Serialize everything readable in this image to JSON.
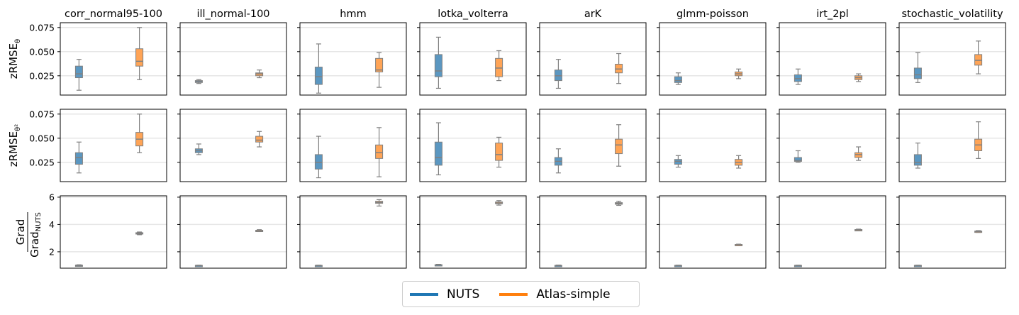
{
  "chart_data": {
    "type": "box",
    "columns": [
      "corr_normal95-100",
      "ill_normal-100",
      "hmm",
      "lotka_volterra",
      "arK",
      "glmm-poisson",
      "irt_2pl",
      "stochastic_volatility"
    ],
    "series": [
      {
        "name": "NUTS",
        "color": "#1f77b4"
      },
      {
        "name": "Atlas-simple",
        "color": "#ff7f0e"
      }
    ],
    "rows": [
      {
        "ylabel_main": "zRMSE",
        "ylabel_sub": "θ",
        "ylim": [
          0.005,
          0.08
        ],
        "yticks": [
          0.025,
          0.05,
          0.075
        ],
        "ytick_labels": [
          "0.025",
          "0.050",
          "0.075"
        ],
        "boxes": [
          [
            {
              "wl": 0.01,
              "q1": 0.023,
              "med": 0.027,
              "q3": 0.035,
              "wh": 0.042
            },
            {
              "wl": 0.021,
              "q1": 0.035,
              "med": 0.04,
              "q3": 0.053,
              "wh": 0.075
            }
          ],
          [
            {
              "wl": 0.017,
              "q1": 0.018,
              "med": 0.019,
              "q3": 0.02,
              "wh": 0.021
            },
            {
              "wl": 0.023,
              "q1": 0.025,
              "med": 0.027,
              "q3": 0.028,
              "wh": 0.031
            }
          ],
          [
            {
              "wl": 0.007,
              "q1": 0.016,
              "med": 0.024,
              "q3": 0.034,
              "wh": 0.058
            },
            {
              "wl": 0.013,
              "q1": 0.029,
              "med": 0.031,
              "q3": 0.043,
              "wh": 0.049
            }
          ],
          [
            {
              "wl": 0.012,
              "q1": 0.024,
              "med": 0.03,
              "q3": 0.047,
              "wh": 0.065
            },
            {
              "wl": 0.02,
              "q1": 0.024,
              "med": 0.033,
              "q3": 0.043,
              "wh": 0.051
            }
          ],
          [
            {
              "wl": 0.012,
              "q1": 0.02,
              "med": 0.025,
              "q3": 0.031,
              "wh": 0.042
            },
            {
              "wl": 0.017,
              "q1": 0.028,
              "med": 0.032,
              "q3": 0.037,
              "wh": 0.048
            }
          ],
          [
            {
              "wl": 0.016,
              "q1": 0.018,
              "med": 0.02,
              "q3": 0.024,
              "wh": 0.028
            },
            {
              "wl": 0.022,
              "q1": 0.025,
              "med": 0.027,
              "q3": 0.029,
              "wh": 0.032
            }
          ],
          [
            {
              "wl": 0.016,
              "q1": 0.019,
              "med": 0.022,
              "q3": 0.026,
              "wh": 0.032
            },
            {
              "wl": 0.019,
              "q1": 0.021,
              "med": 0.023,
              "q3": 0.025,
              "wh": 0.027
            }
          ],
          [
            {
              "wl": 0.018,
              "q1": 0.022,
              "med": 0.026,
              "q3": 0.033,
              "wh": 0.049
            },
            {
              "wl": 0.027,
              "q1": 0.036,
              "med": 0.041,
              "q3": 0.047,
              "wh": 0.061
            }
          ]
        ]
      },
      {
        "ylabel_main": "zRMSE",
        "ylabel_sub": "θ²",
        "ylim": [
          0.005,
          0.08
        ],
        "yticks": [
          0.025,
          0.05,
          0.075
        ],
        "ytick_labels": [
          "0.025",
          "0.050",
          "0.075"
        ],
        "boxes": [
          [
            {
              "wl": 0.014,
              "q1": 0.023,
              "med": 0.03,
              "q3": 0.035,
              "wh": 0.046
            },
            {
              "wl": 0.035,
              "q1": 0.042,
              "med": 0.049,
              "q3": 0.056,
              "wh": 0.075
            }
          ],
          [
            {
              "wl": 0.033,
              "q1": 0.035,
              "med": 0.037,
              "q3": 0.039,
              "wh": 0.044
            },
            {
              "wl": 0.041,
              "q1": 0.046,
              "med": 0.048,
              "q3": 0.052,
              "wh": 0.057
            }
          ],
          [
            {
              "wl": 0.009,
              "q1": 0.018,
              "med": 0.025,
              "q3": 0.033,
              "wh": 0.052
            },
            {
              "wl": 0.01,
              "q1": 0.029,
              "med": 0.035,
              "q3": 0.043,
              "wh": 0.061
            }
          ],
          [
            {
              "wl": 0.012,
              "q1": 0.022,
              "med": 0.03,
              "q3": 0.046,
              "wh": 0.066
            },
            {
              "wl": 0.02,
              "q1": 0.027,
              "med": 0.033,
              "q3": 0.045,
              "wh": 0.051
            }
          ],
          [
            {
              "wl": 0.014,
              "q1": 0.022,
              "med": 0.026,
              "q3": 0.03,
              "wh": 0.039
            },
            {
              "wl": 0.021,
              "q1": 0.034,
              "med": 0.043,
              "q3": 0.049,
              "wh": 0.064
            }
          ],
          [
            {
              "wl": 0.02,
              "q1": 0.023,
              "med": 0.026,
              "q3": 0.028,
              "wh": 0.032
            },
            {
              "wl": 0.019,
              "q1": 0.022,
              "med": 0.025,
              "q3": 0.028,
              "wh": 0.032
            }
          ],
          [
            {
              "wl": 0.025,
              "q1": 0.026,
              "med": 0.027,
              "q3": 0.03,
              "wh": 0.037
            },
            {
              "wl": 0.027,
              "q1": 0.03,
              "med": 0.033,
              "q3": 0.035,
              "wh": 0.041
            }
          ],
          [
            {
              "wl": 0.019,
              "q1": 0.022,
              "med": 0.025,
              "q3": 0.033,
              "wh": 0.045
            },
            {
              "wl": 0.029,
              "q1": 0.037,
              "med": 0.043,
              "q3": 0.049,
              "wh": 0.067
            }
          ]
        ]
      },
      {
        "ylabel_main": "Grad",
        "ylabel_sub": "Grad",
        "ylabel_subsub": "NUTS",
        "ylim": [
          0.8,
          6.1
        ],
        "yticks": [
          2,
          4,
          6
        ],
        "ytick_labels": [
          "2",
          "4",
          "6"
        ],
        "boxes": [
          [
            {
              "wl": 0.95,
              "q1": 0.97,
              "med": 1.0,
              "q3": 1.03,
              "wh": 1.05
            },
            {
              "wl": 3.25,
              "q1": 3.3,
              "med": 3.35,
              "q3": 3.4,
              "wh": 3.45
            }
          ],
          [
            {
              "wl": 0.98,
              "q1": 0.99,
              "med": 1.0,
              "q3": 1.01,
              "wh": 1.02
            },
            {
              "wl": 3.48,
              "q1": 3.52,
              "med": 3.55,
              "q3": 3.58,
              "wh": 3.62
            }
          ],
          [
            {
              "wl": 0.98,
              "q1": 0.99,
              "med": 1.0,
              "q3": 1.01,
              "wh": 1.02
            },
            {
              "wl": 5.35,
              "q1": 5.55,
              "med": 5.62,
              "q3": 5.7,
              "wh": 5.82
            }
          ],
          [
            {
              "wl": 1.0,
              "q1": 1.02,
              "med": 1.04,
              "q3": 1.06,
              "wh": 1.08
            },
            {
              "wl": 5.42,
              "q1": 5.52,
              "med": 5.58,
              "q3": 5.65,
              "wh": 5.75
            }
          ],
          [
            {
              "wl": 0.97,
              "q1": 0.99,
              "med": 1.0,
              "q3": 1.01,
              "wh": 1.03
            },
            {
              "wl": 5.4,
              "q1": 5.48,
              "med": 5.54,
              "q3": 5.6,
              "wh": 5.7
            }
          ],
          [
            {
              "wl": 0.98,
              "q1": 0.99,
              "med": 1.0,
              "q3": 1.01,
              "wh": 1.02
            },
            {
              "wl": 2.48,
              "q1": 2.5,
              "med": 2.52,
              "q3": 2.54,
              "wh": 2.56
            }
          ],
          [
            {
              "wl": 0.98,
              "q1": 0.99,
              "med": 1.0,
              "q3": 1.01,
              "wh": 1.02
            },
            {
              "wl": 3.55,
              "q1": 3.58,
              "med": 3.6,
              "q3": 3.63,
              "wh": 3.66
            }
          ],
          [
            {
              "wl": 0.98,
              "q1": 0.99,
              "med": 1.0,
              "q3": 1.01,
              "wh": 1.02
            },
            {
              "wl": 3.42,
              "q1": 3.46,
              "med": 3.49,
              "q3": 3.52,
              "wh": 3.55
            }
          ]
        ]
      }
    ],
    "grid": "horizontal",
    "legend_position": "bottom-center"
  },
  "legend": {
    "nuts": "NUTS",
    "atlas": "Atlas-simple"
  }
}
